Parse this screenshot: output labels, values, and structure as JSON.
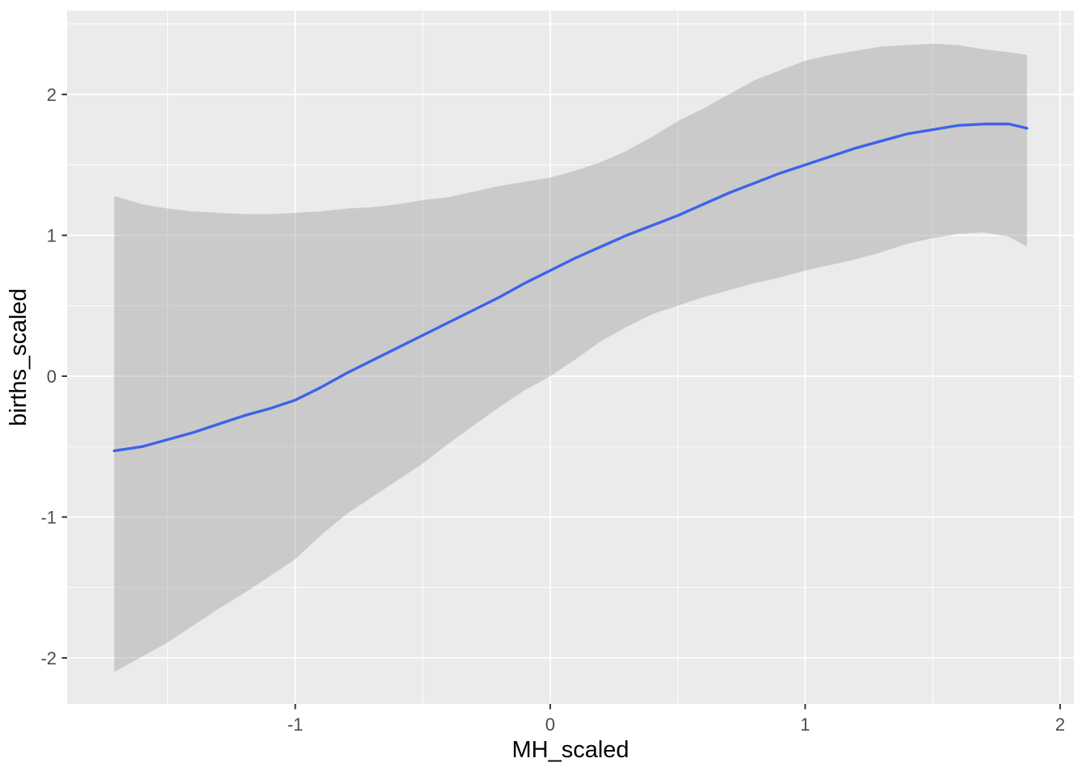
{
  "chart_data": {
    "type": "line",
    "title": "",
    "xlabel": "MH_scaled",
    "ylabel": "births_scaled",
    "xlim": [
      -1.895,
      2.054
    ],
    "ylim": [
      -2.327,
      2.596
    ],
    "x_major_ticks": [
      -1,
      0,
      1,
      2
    ],
    "x_tick_labels": [
      "-1",
      "0",
      "1",
      "2"
    ],
    "x_minor_ticks": [
      -1.5,
      -0.5,
      0.5,
      1.5
    ],
    "y_major_ticks": [
      -2,
      -1,
      0,
      1,
      2
    ],
    "y_tick_labels": [
      "-2",
      "-1",
      "0",
      "1",
      "2"
    ],
    "y_minor_ticks": [
      -1.5,
      -0.5,
      0.5,
      1.5,
      2.5
    ],
    "grid": true,
    "legend_position": "none",
    "panel_bg_color": "#EBEBEB",
    "grid_color": "#FFFFFF",
    "outer_bg_color": "#FFFFFF",
    "tick_label_color": "#4D4D4D",
    "tick_mark_color": "#333333",
    "axis_title_color": "#000000",
    "ribbon_fill_color": "#999999",
    "ribbon_opacity": 0.4,
    "line_color": "#3D63E9",
    "series": [
      {
        "name": "smooth_fit",
        "x": [
          -1.71,
          -1.6,
          -1.5,
          -1.4,
          -1.3,
          -1.2,
          -1.1,
          -1.0,
          -0.9,
          -0.8,
          -0.7,
          -0.6,
          -0.5,
          -0.4,
          -0.3,
          -0.2,
          -0.1,
          0.0,
          0.1,
          0.2,
          0.3,
          0.4,
          0.5,
          0.6,
          0.7,
          0.8,
          0.9,
          1.0,
          1.1,
          1.2,
          1.3,
          1.4,
          1.5,
          1.6,
          1.7,
          1.8,
          1.87
        ],
        "y": [
          -0.53,
          -0.5,
          -0.45,
          -0.4,
          -0.34,
          -0.28,
          -0.23,
          -0.17,
          -0.08,
          0.02,
          0.11,
          0.2,
          0.29,
          0.38,
          0.47,
          0.56,
          0.66,
          0.75,
          0.84,
          0.92,
          1.0,
          1.07,
          1.14,
          1.22,
          1.3,
          1.37,
          1.44,
          1.5,
          1.56,
          1.62,
          1.67,
          1.72,
          1.75,
          1.78,
          1.79,
          1.79,
          1.76
        ]
      }
    ],
    "ribbon": {
      "name": "confidence_band",
      "x": [
        -1.71,
        -1.6,
        -1.5,
        -1.4,
        -1.3,
        -1.2,
        -1.1,
        -1.0,
        -0.9,
        -0.8,
        -0.7,
        -0.6,
        -0.5,
        -0.4,
        -0.3,
        -0.2,
        -0.1,
        0.0,
        0.1,
        0.2,
        0.3,
        0.4,
        0.5,
        0.6,
        0.7,
        0.8,
        0.9,
        1.0,
        1.1,
        1.2,
        1.3,
        1.4,
        1.5,
        1.6,
        1.7,
        1.8,
        1.87
      ],
      "upper": [
        1.28,
        1.22,
        1.19,
        1.17,
        1.16,
        1.15,
        1.15,
        1.16,
        1.17,
        1.19,
        1.2,
        1.22,
        1.25,
        1.27,
        1.31,
        1.35,
        1.38,
        1.41,
        1.46,
        1.52,
        1.6,
        1.7,
        1.81,
        1.9,
        2.0,
        2.1,
        2.17,
        2.24,
        2.28,
        2.31,
        2.34,
        2.35,
        2.36,
        2.35,
        2.32,
        2.3,
        2.28
      ],
      "lower": [
        -2.1,
        -1.99,
        -1.89,
        -1.77,
        -1.65,
        -1.54,
        -1.42,
        -1.3,
        -1.13,
        -0.98,
        -0.86,
        -0.74,
        -0.62,
        -0.48,
        -0.35,
        -0.22,
        -0.1,
        0.0,
        0.12,
        0.25,
        0.35,
        0.44,
        0.5,
        0.56,
        0.61,
        0.66,
        0.7,
        0.75,
        0.79,
        0.83,
        0.88,
        0.94,
        0.98,
        1.01,
        1.02,
        0.99,
        0.92
      ]
    }
  }
}
